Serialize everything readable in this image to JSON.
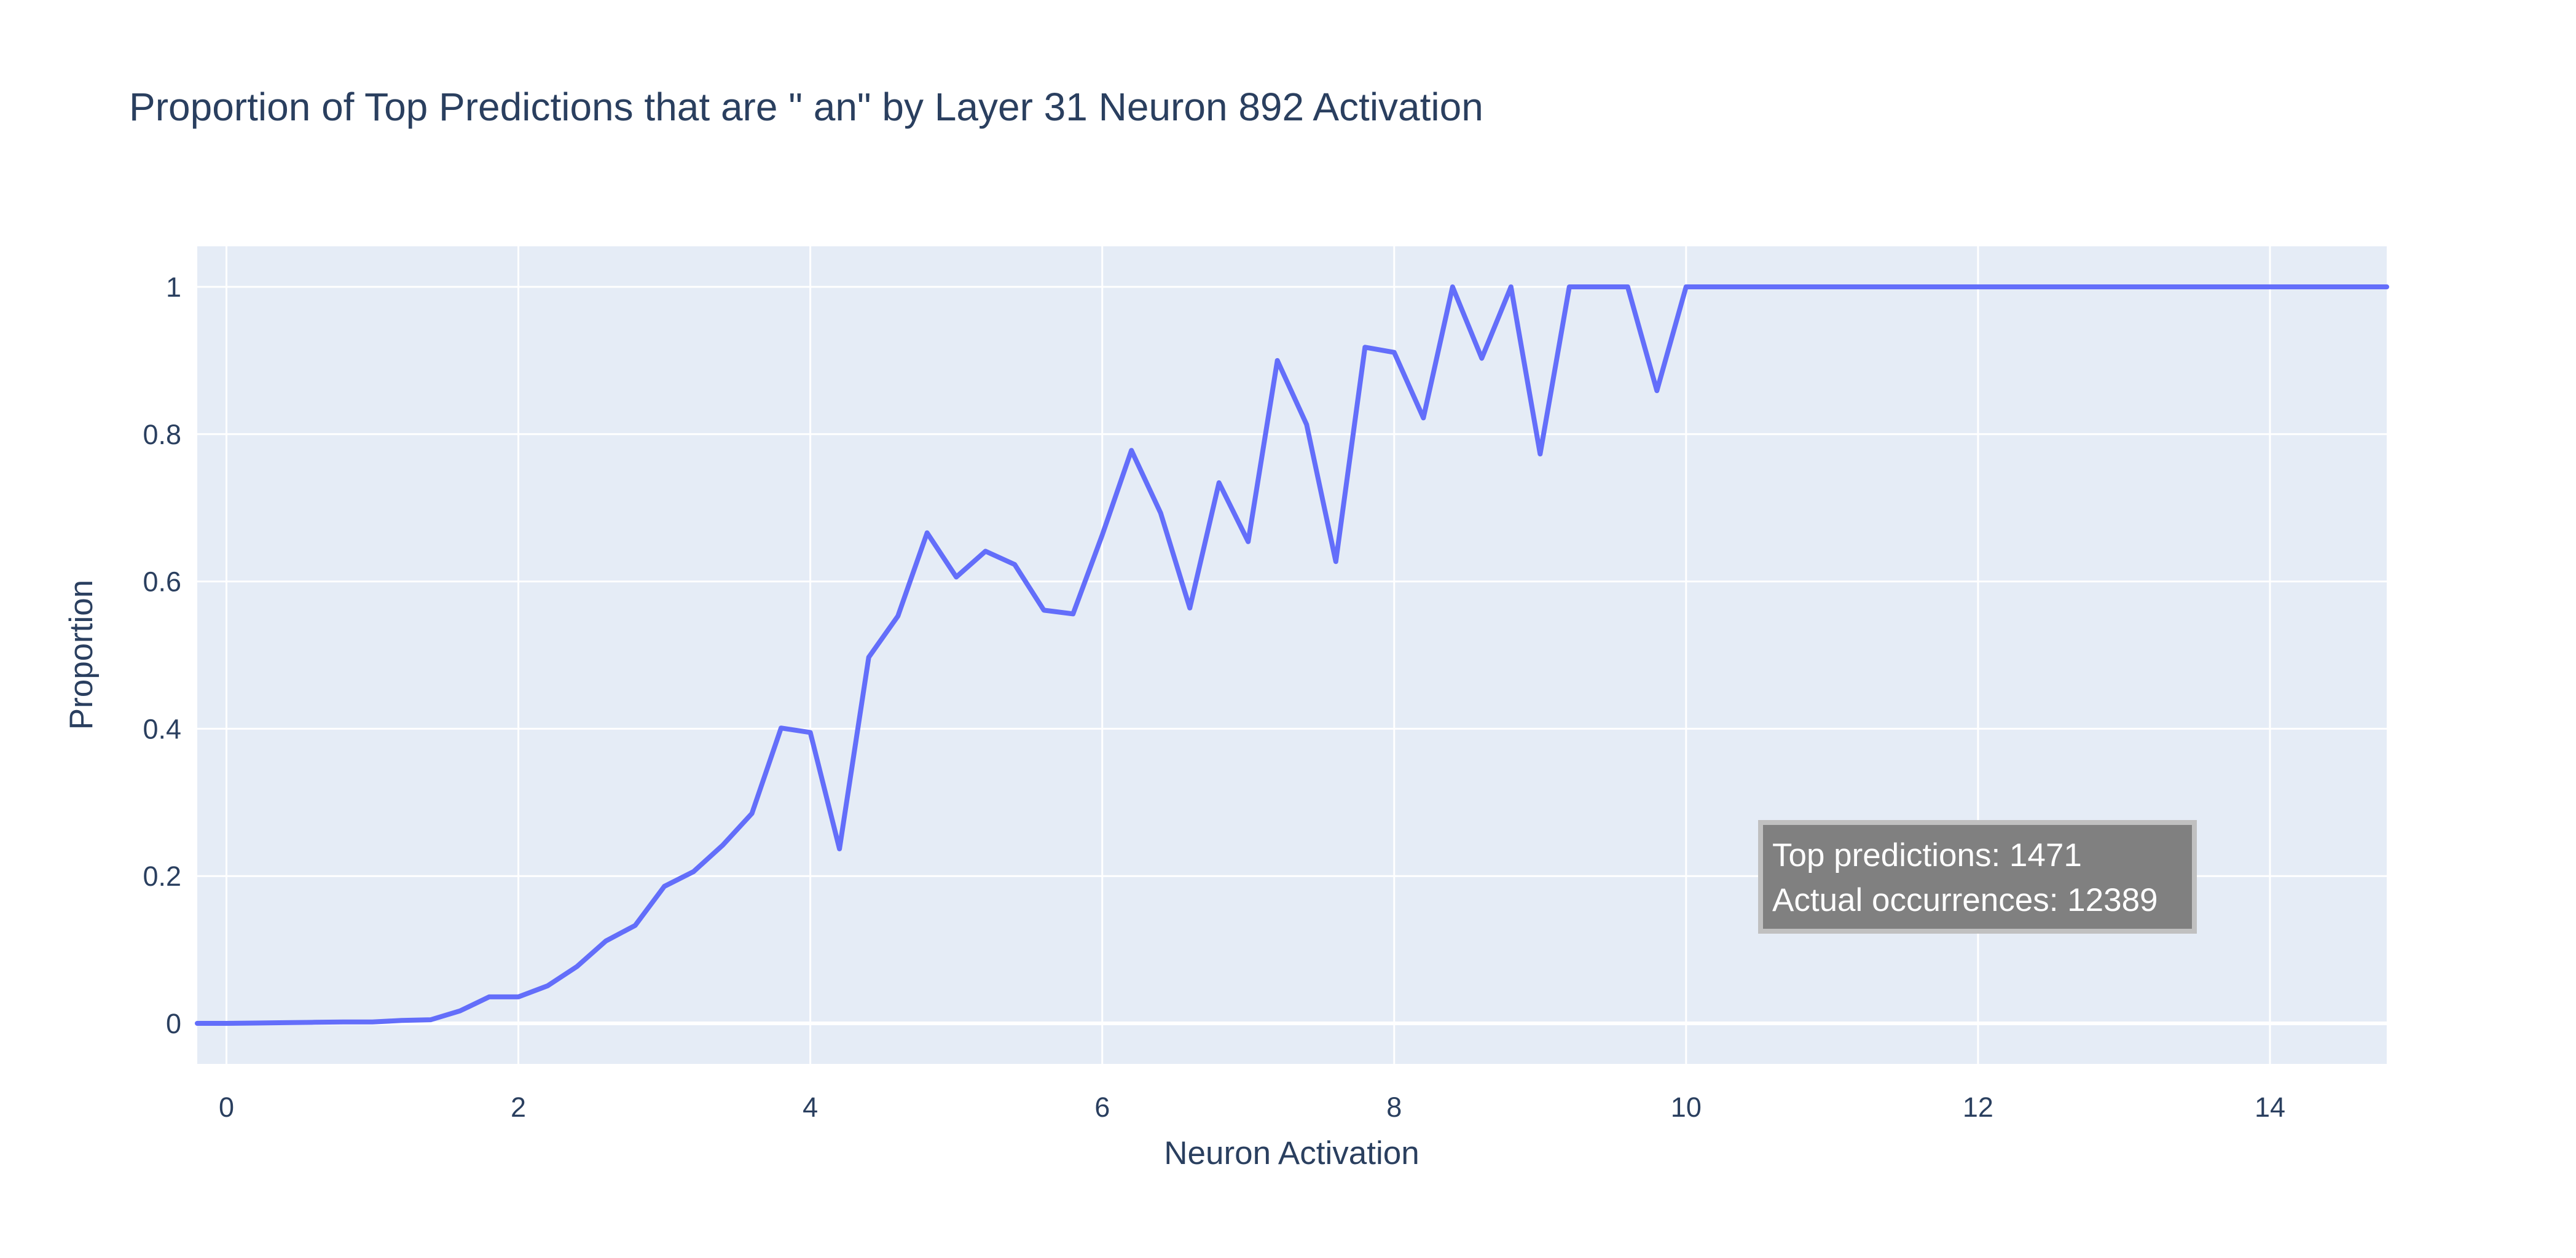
{
  "chart_data": {
    "type": "line",
    "title": "Proportion of Top Predictions that are \" an\" by Layer 31 Neuron 892 Activation",
    "xlabel": "Neuron Activation",
    "ylabel": "Proportion",
    "xlim": [
      -0.2,
      14.8
    ],
    "ylim": [
      -0.055,
      1.055
    ],
    "xticks": [
      0,
      2,
      4,
      6,
      8,
      10,
      12,
      14
    ],
    "yticks": [
      0,
      0.2,
      0.4,
      0.6,
      0.8,
      1
    ],
    "ytick_labels": [
      "0",
      "0.2",
      "0.4",
      "0.6",
      "0.8",
      "1"
    ],
    "grid": true,
    "colors": {
      "line": "#636efa",
      "plot_bg": "#e5ecf6",
      "grid": "#ffffff",
      "text": "#2a3f5f",
      "annotation_bg": "#808080",
      "annotation_border": "#c0c0c0"
    },
    "series": [
      {
        "x": [
          -0.2,
          0,
          0.2,
          0.4,
          0.6,
          0.8,
          1.0,
          1.2,
          1.4,
          1.6,
          1.8,
          2.0,
          2.2,
          2.4,
          2.6,
          2.8,
          3.0,
          3.2,
          3.4,
          3.6,
          3.8,
          4.0,
          4.2,
          4.4,
          4.6,
          4.8,
          5.0,
          5.2,
          5.4,
          5.6,
          5.8,
          6.0,
          6.2,
          6.4,
          6.6,
          6.8,
          7.0,
          7.2,
          7.4,
          7.6,
          7.8,
          8.0,
          8.2,
          8.4,
          8.6,
          8.8,
          9.0,
          9.2,
          9.4,
          9.6,
          9.8,
          10.0,
          10.2,
          10.4,
          10.6,
          10.8,
          11.0,
          11.2,
          11.4,
          11.6,
          11.8,
          12.0,
          12.2,
          12.4,
          12.6,
          12.8,
          13.0,
          13.2,
          13.4,
          13.6,
          13.8,
          14.0,
          14.2,
          14.4,
          14.6,
          14.8
        ],
        "y": [
          0.0,
          0.0,
          0.0005,
          0.001,
          0.0015,
          0.002,
          0.002,
          0.004,
          0.005,
          0.017,
          0.036,
          0.036,
          0.051,
          0.077,
          0.112,
          0.133,
          0.186,
          0.206,
          0.242,
          0.285,
          0.401,
          0.395,
          0.237,
          0.497,
          0.553,
          0.666,
          0.606,
          0.641,
          0.623,
          0.561,
          0.556,
          0.663,
          0.778,
          0.693,
          0.564,
          0.734,
          0.654,
          0.9,
          0.813,
          0.627,
          0.918,
          0.911,
          0.822,
          1.0,
          0.903,
          1.0,
          0.773,
          1.0,
          1.0,
          1.0,
          0.859,
          1.0,
          1.0,
          1.0,
          1.0,
          1.0,
          1.0,
          1.0,
          1.0,
          1.0,
          1.0,
          1.0,
          1.0,
          1.0,
          1.0,
          1.0,
          1.0,
          1.0,
          1.0,
          1.0,
          1.0,
          1.0,
          1.0,
          1.0,
          1.0,
          1.0
        ]
      }
    ],
    "annotation": {
      "lines": [
        "Top predictions: 1471",
        "Actual occurrences: 12389"
      ],
      "x": 10.55,
      "y": 0.225
    }
  }
}
